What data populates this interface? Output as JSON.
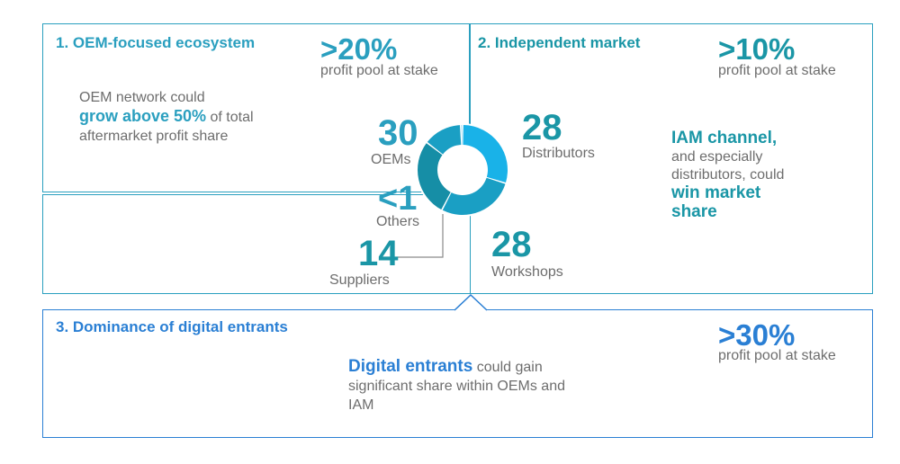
{
  "colors": {
    "blue": "#2a7fd4",
    "cyan": "#2a9fbf",
    "teal": "#1a96a6",
    "donut_light": "#19b2e8",
    "donut_mid": "#1a9fc4",
    "donut_dark": "#168ea6",
    "gray_text": "#6d6d6d"
  },
  "sections": {
    "oem": {
      "title": "1.  OEM-focused ecosystem",
      "stat": ">20%",
      "stat_label": "profit pool at stake",
      "text_before": "OEM network could",
      "text_highlight": "grow above 50%",
      "text_after": "of total aftermarket profit share"
    },
    "iam": {
      "title": "2.  Independent market",
      "stat": ">10%",
      "stat_label": "profit pool at stake",
      "text_highlight_1": "IAM channel,",
      "text_middle": "and especially distributors, could",
      "text_highlight_2": "win market share"
    },
    "digital": {
      "title": "3.  Dominance of digital entrants",
      "stat": ">30%",
      "stat_label": "profit pool at stake",
      "text_highlight": "Digital entrants",
      "text_after": "could gain significant share within OEMs and IAM"
    }
  },
  "chart_data": {
    "type": "pie",
    "donut": true,
    "slices": [
      {
        "value_label": "30",
        "label": "OEMs",
        "value": 30,
        "color": "#19b2e8"
      },
      {
        "value_label": "28",
        "label": "Distributors",
        "value": 28,
        "color": "#1a9fc4"
      },
      {
        "value_label": "28",
        "label": "Workshops",
        "value": 28,
        "color": "#168ea6"
      },
      {
        "value_label": "14",
        "label": "Suppliers",
        "value": 14,
        "color": "#1a9fc4"
      },
      {
        "value_label": "<1",
        "label": "Others",
        "value": 0.7,
        "color": "#19b2e8"
      }
    ]
  }
}
